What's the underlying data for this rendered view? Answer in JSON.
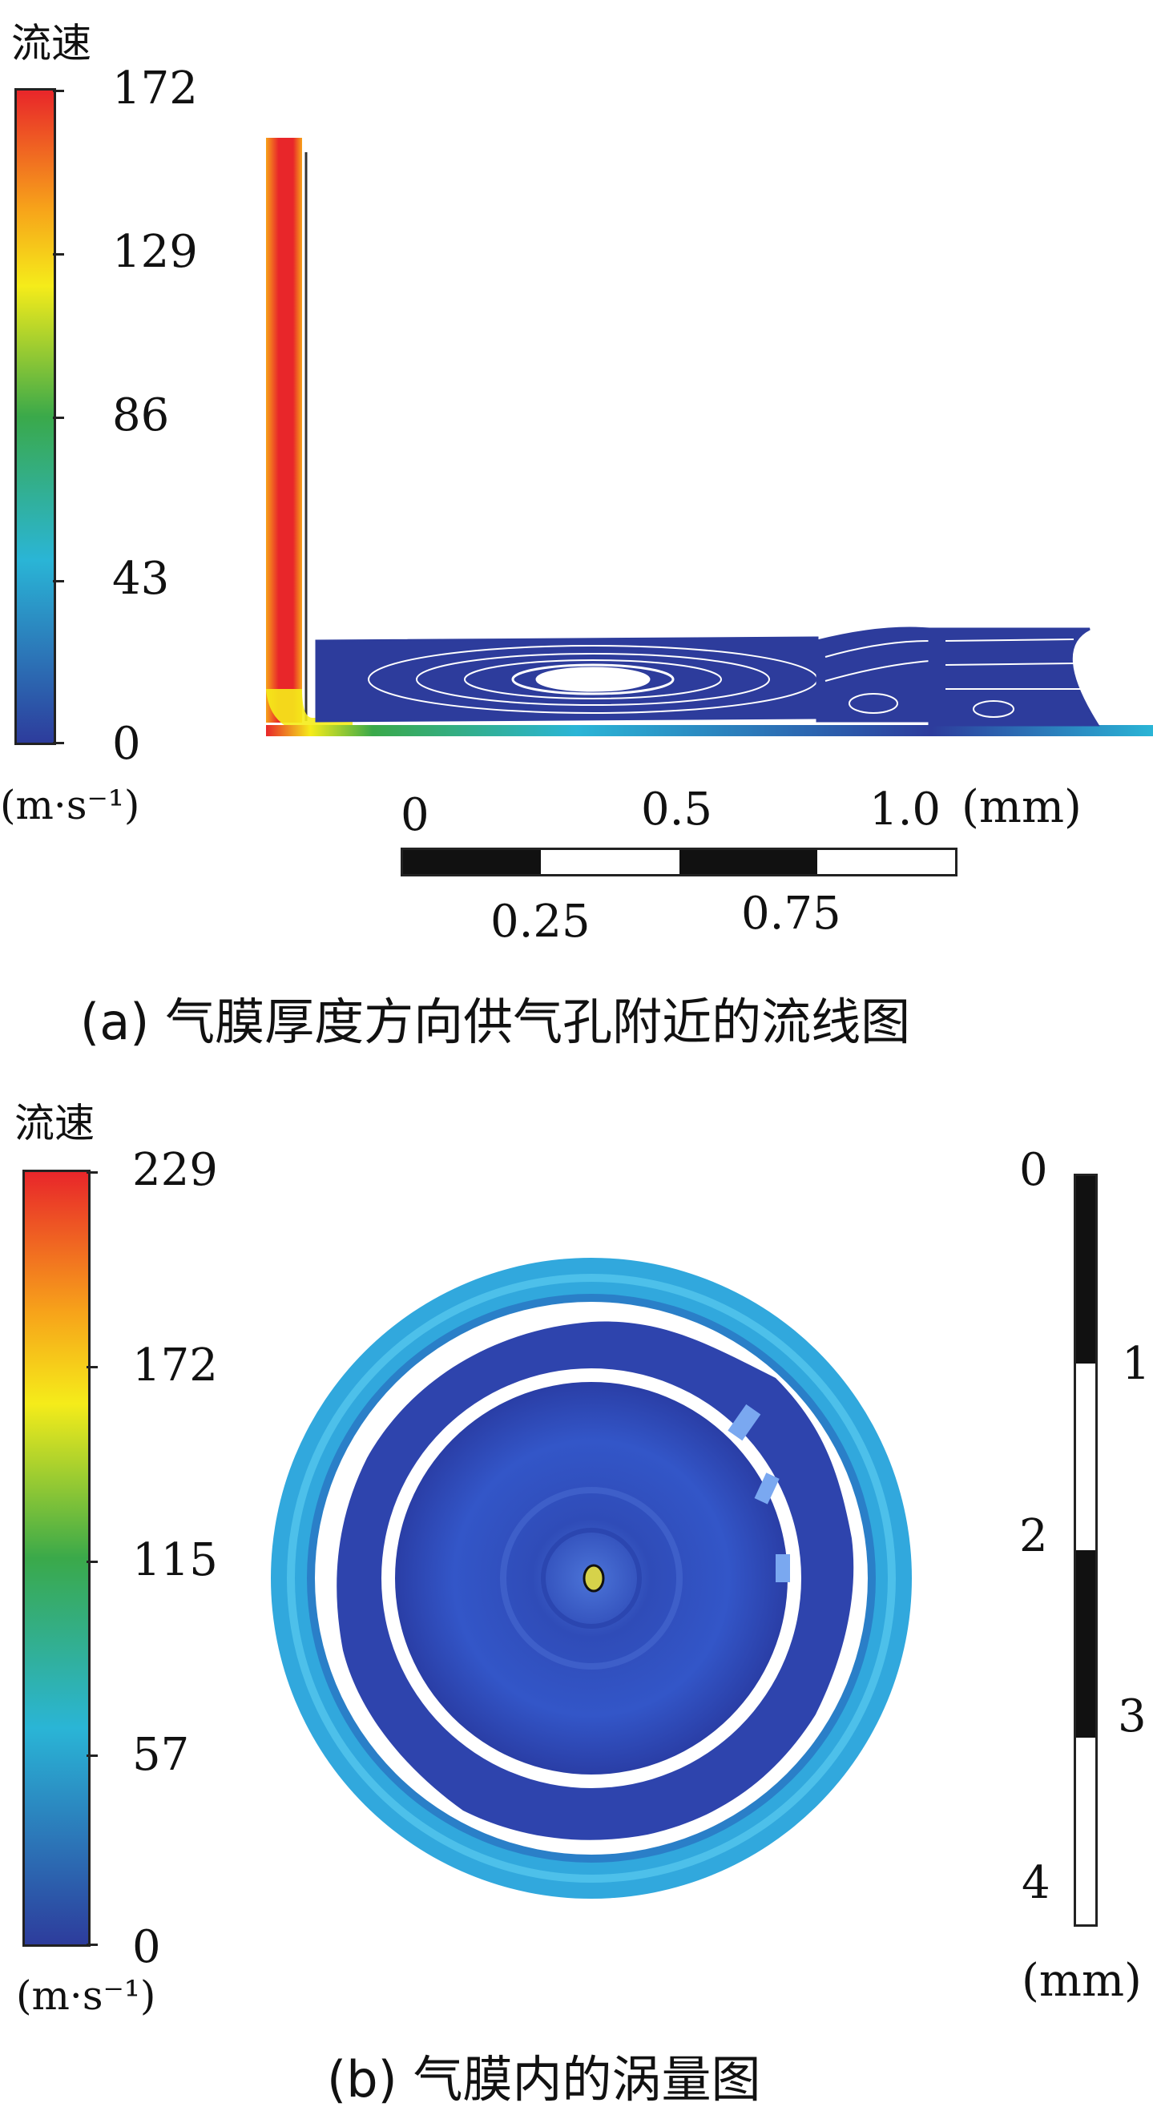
{
  "panel_a": {
    "colorbar": {
      "title": "流速",
      "ticks": [
        "172",
        "129",
        "86",
        "43",
        "0"
      ],
      "unit": "(m·s⁻¹)",
      "colors": [
        "#e8262a",
        "#f7a21a",
        "#f5ec1a",
        "#3aa94a",
        "#2ab5d6",
        "#2d3c9c"
      ]
    },
    "scale_bar": {
      "top_labels": [
        "0",
        "0.5",
        "1.0"
      ],
      "bottom_labels": [
        "0.25",
        "0.75"
      ],
      "unit": "(mm)"
    },
    "caption": "(a) 气膜厚度方向供气孔附近的流线图"
  },
  "panel_b": {
    "colorbar": {
      "title": "流速",
      "ticks": [
        "229",
        "172",
        "115",
        "57",
        "0"
      ],
      "unit": "(m·s⁻¹)",
      "colors": [
        "#e8262a",
        "#f7a21a",
        "#f5ec1a",
        "#3aa94a",
        "#2ab5d6",
        "#2d3c9c"
      ]
    },
    "scale_bar": {
      "left_labels": [
        "0",
        "2",
        "4"
      ],
      "right_labels": [
        "1",
        "3"
      ],
      "unit": "(mm)"
    },
    "caption": "(b) 气膜内的涡量图"
  }
}
